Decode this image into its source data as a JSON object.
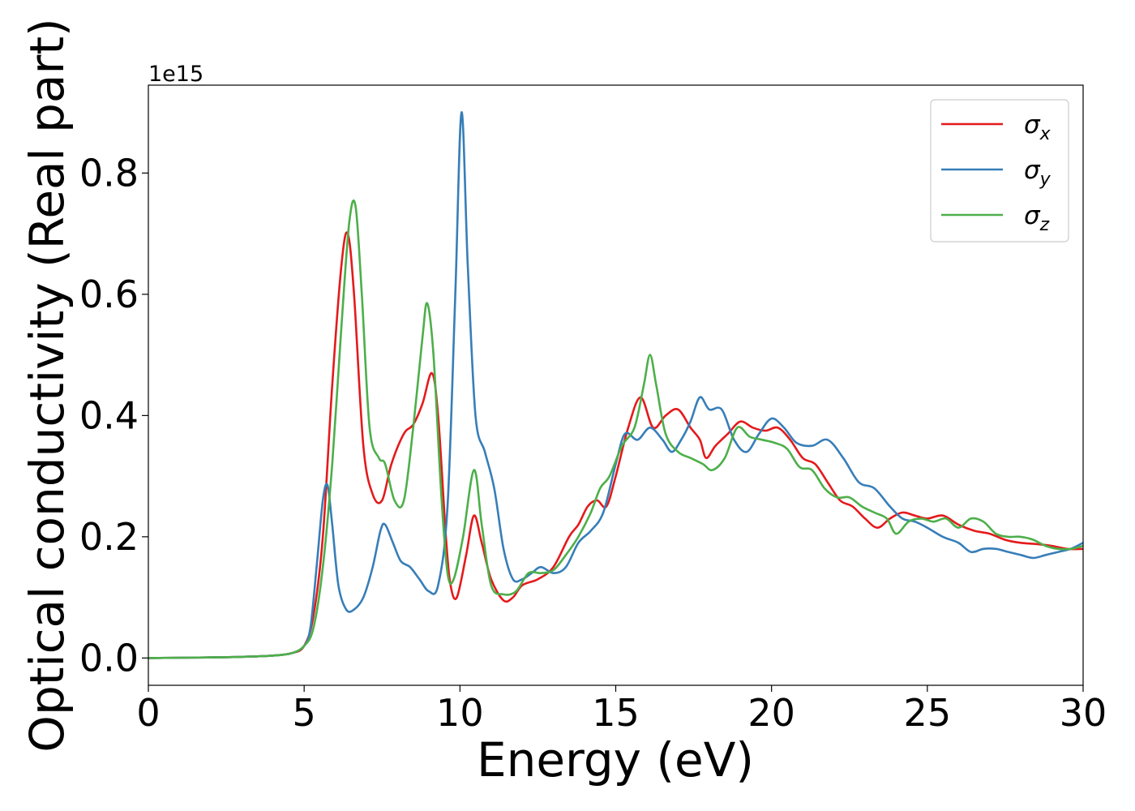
{
  "chart_data": {
    "type": "line",
    "title": "",
    "xlabel": "Energy (eV)",
    "ylabel": "Optical conductivity (Real part)",
    "y_offset_label": "1e15",
    "xlim": [
      0,
      30
    ],
    "ylim": [
      -0.045,
      0.945
    ],
    "x_ticks": [
      {
        "value": 0,
        "label": "0"
      },
      {
        "value": 5,
        "label": "5"
      },
      {
        "value": 10,
        "label": "10"
      },
      {
        "value": 15,
        "label": "15"
      },
      {
        "value": 20,
        "label": "20"
      },
      {
        "value": 25,
        "label": "25"
      },
      {
        "value": 30,
        "label": "30"
      }
    ],
    "y_ticks": [
      {
        "value": 0.0,
        "label": "0.0"
      },
      {
        "value": 0.2,
        "label": "0.2"
      },
      {
        "value": 0.4,
        "label": "0.4"
      },
      {
        "value": 0.6,
        "label": "0.6"
      },
      {
        "value": 0.8,
        "label": "0.8"
      }
    ],
    "grid": false,
    "legend_position": "top-right",
    "series": [
      {
        "name": "σ",
        "subscript": "x",
        "color": "#e41a1c",
        "points": [
          [
            0,
            0
          ],
          [
            2,
            0.001
          ],
          [
            3,
            0.002
          ],
          [
            4,
            0.004
          ],
          [
            4.6,
            0.008
          ],
          [
            5.0,
            0.02
          ],
          [
            5.3,
            0.07
          ],
          [
            5.6,
            0.2
          ],
          [
            5.9,
            0.45
          ],
          [
            6.2,
            0.65
          ],
          [
            6.4,
            0.7
          ],
          [
            6.6,
            0.6
          ],
          [
            6.9,
            0.35
          ],
          [
            7.2,
            0.27
          ],
          [
            7.5,
            0.26
          ],
          [
            7.8,
            0.32
          ],
          [
            8.2,
            0.37
          ],
          [
            8.5,
            0.385
          ],
          [
            8.8,
            0.42
          ],
          [
            9.1,
            0.47
          ],
          [
            9.3,
            0.4
          ],
          [
            9.55,
            0.2
          ],
          [
            9.7,
            0.12
          ],
          [
            9.9,
            0.1
          ],
          [
            10.2,
            0.17
          ],
          [
            10.45,
            0.235
          ],
          [
            10.7,
            0.19
          ],
          [
            11.0,
            0.13
          ],
          [
            11.4,
            0.095
          ],
          [
            11.7,
            0.1
          ],
          [
            12.0,
            0.12
          ],
          [
            12.5,
            0.13
          ],
          [
            13.0,
            0.15
          ],
          [
            13.5,
            0.2
          ],
          [
            13.8,
            0.22
          ],
          [
            14.1,
            0.25
          ],
          [
            14.4,
            0.26
          ],
          [
            14.7,
            0.25
          ],
          [
            15.0,
            0.3
          ],
          [
            15.4,
            0.38
          ],
          [
            15.8,
            0.43
          ],
          [
            16.2,
            0.38
          ],
          [
            16.6,
            0.4
          ],
          [
            17.0,
            0.41
          ],
          [
            17.4,
            0.38
          ],
          [
            17.7,
            0.36
          ],
          [
            17.9,
            0.33
          ],
          [
            18.2,
            0.35
          ],
          [
            18.6,
            0.37
          ],
          [
            19.0,
            0.39
          ],
          [
            19.4,
            0.38
          ],
          [
            19.8,
            0.375
          ],
          [
            20.2,
            0.38
          ],
          [
            20.6,
            0.36
          ],
          [
            21.0,
            0.33
          ],
          [
            21.4,
            0.32
          ],
          [
            21.8,
            0.29
          ],
          [
            22.2,
            0.26
          ],
          [
            22.6,
            0.25
          ],
          [
            23.0,
            0.23
          ],
          [
            23.4,
            0.215
          ],
          [
            23.8,
            0.23
          ],
          [
            24.2,
            0.24
          ],
          [
            24.6,
            0.235
          ],
          [
            25.0,
            0.23
          ],
          [
            25.5,
            0.235
          ],
          [
            26.0,
            0.22
          ],
          [
            26.5,
            0.21
          ],
          [
            27.0,
            0.205
          ],
          [
            27.5,
            0.195
          ],
          [
            28.0,
            0.19
          ],
          [
            28.5,
            0.188
          ],
          [
            29.0,
            0.185
          ],
          [
            29.5,
            0.18
          ],
          [
            30,
            0.18
          ]
        ]
      },
      {
        "name": "σ",
        "subscript": "y",
        "color": "#377eb8",
        "points": [
          [
            0,
            0
          ],
          [
            2,
            0.001
          ],
          [
            3,
            0.002
          ],
          [
            4,
            0.004
          ],
          [
            4.6,
            0.008
          ],
          [
            5.0,
            0.02
          ],
          [
            5.2,
            0.05
          ],
          [
            5.4,
            0.15
          ],
          [
            5.6,
            0.26
          ],
          [
            5.75,
            0.285
          ],
          [
            5.9,
            0.22
          ],
          [
            6.1,
            0.12
          ],
          [
            6.35,
            0.08
          ],
          [
            6.6,
            0.08
          ],
          [
            6.9,
            0.1
          ],
          [
            7.2,
            0.15
          ],
          [
            7.45,
            0.21
          ],
          [
            7.6,
            0.22
          ],
          [
            7.85,
            0.19
          ],
          [
            8.1,
            0.16
          ],
          [
            8.4,
            0.15
          ],
          [
            8.7,
            0.13
          ],
          [
            9.0,
            0.11
          ],
          [
            9.3,
            0.12
          ],
          [
            9.6,
            0.25
          ],
          [
            9.85,
            0.6
          ],
          [
            10.05,
            0.9
          ],
          [
            10.25,
            0.65
          ],
          [
            10.5,
            0.4
          ],
          [
            10.8,
            0.34
          ],
          [
            11.1,
            0.28
          ],
          [
            11.4,
            0.18
          ],
          [
            11.7,
            0.13
          ],
          [
            12.0,
            0.13
          ],
          [
            12.3,
            0.14
          ],
          [
            12.6,
            0.15
          ],
          [
            13.0,
            0.14
          ],
          [
            13.4,
            0.15
          ],
          [
            13.8,
            0.19
          ],
          [
            14.2,
            0.21
          ],
          [
            14.6,
            0.24
          ],
          [
            15.0,
            0.32
          ],
          [
            15.3,
            0.37
          ],
          [
            15.7,
            0.36
          ],
          [
            16.1,
            0.38
          ],
          [
            16.5,
            0.36
          ],
          [
            16.8,
            0.34
          ],
          [
            17.1,
            0.36
          ],
          [
            17.4,
            0.39
          ],
          [
            17.7,
            0.43
          ],
          [
            18.0,
            0.41
          ],
          [
            18.4,
            0.41
          ],
          [
            18.8,
            0.36
          ],
          [
            19.2,
            0.34
          ],
          [
            19.6,
            0.37
          ],
          [
            20.0,
            0.395
          ],
          [
            20.4,
            0.38
          ],
          [
            20.8,
            0.355
          ],
          [
            21.3,
            0.35
          ],
          [
            21.8,
            0.36
          ],
          [
            22.3,
            0.33
          ],
          [
            22.8,
            0.29
          ],
          [
            23.3,
            0.28
          ],
          [
            23.8,
            0.25
          ],
          [
            24.2,
            0.23
          ],
          [
            24.6,
            0.225
          ],
          [
            25.0,
            0.215
          ],
          [
            25.5,
            0.2
          ],
          [
            26.0,
            0.19
          ],
          [
            26.4,
            0.175
          ],
          [
            26.8,
            0.18
          ],
          [
            27.2,
            0.18
          ],
          [
            27.6,
            0.175
          ],
          [
            28.0,
            0.17
          ],
          [
            28.4,
            0.165
          ],
          [
            28.8,
            0.17
          ],
          [
            29.2,
            0.175
          ],
          [
            29.6,
            0.18
          ],
          [
            30,
            0.19
          ]
        ]
      },
      {
        "name": "σ",
        "subscript": "z",
        "color": "#4daf4a",
        "points": [
          [
            0,
            0
          ],
          [
            2,
            0.001
          ],
          [
            3,
            0.002
          ],
          [
            4,
            0.004
          ],
          [
            4.6,
            0.008
          ],
          [
            5.0,
            0.02
          ],
          [
            5.3,
            0.05
          ],
          [
            5.6,
            0.15
          ],
          [
            5.9,
            0.32
          ],
          [
            6.2,
            0.55
          ],
          [
            6.45,
            0.72
          ],
          [
            6.65,
            0.745
          ],
          [
            6.85,
            0.6
          ],
          [
            7.1,
            0.38
          ],
          [
            7.4,
            0.33
          ],
          [
            7.6,
            0.32
          ],
          [
            7.9,
            0.26
          ],
          [
            8.2,
            0.26
          ],
          [
            8.5,
            0.38
          ],
          [
            8.8,
            0.53
          ],
          [
            8.95,
            0.585
          ],
          [
            9.15,
            0.5
          ],
          [
            9.4,
            0.27
          ],
          [
            9.6,
            0.14
          ],
          [
            9.8,
            0.13
          ],
          [
            10.1,
            0.2
          ],
          [
            10.45,
            0.31
          ],
          [
            10.7,
            0.22
          ],
          [
            11.0,
            0.12
          ],
          [
            11.4,
            0.105
          ],
          [
            11.8,
            0.11
          ],
          [
            12.2,
            0.14
          ],
          [
            12.6,
            0.14
          ],
          [
            13.0,
            0.145
          ],
          [
            13.4,
            0.17
          ],
          [
            13.8,
            0.2
          ],
          [
            14.2,
            0.24
          ],
          [
            14.5,
            0.28
          ],
          [
            14.8,
            0.3
          ],
          [
            15.2,
            0.35
          ],
          [
            15.6,
            0.38
          ],
          [
            15.9,
            0.45
          ],
          [
            16.1,
            0.5
          ],
          [
            16.3,
            0.45
          ],
          [
            16.6,
            0.37
          ],
          [
            17.0,
            0.34
          ],
          [
            17.4,
            0.33
          ],
          [
            17.8,
            0.32
          ],
          [
            18.1,
            0.31
          ],
          [
            18.5,
            0.33
          ],
          [
            18.9,
            0.38
          ],
          [
            19.3,
            0.365
          ],
          [
            19.7,
            0.36
          ],
          [
            20.1,
            0.355
          ],
          [
            20.5,
            0.345
          ],
          [
            20.9,
            0.315
          ],
          [
            21.3,
            0.31
          ],
          [
            21.7,
            0.28
          ],
          [
            22.1,
            0.265
          ],
          [
            22.5,
            0.265
          ],
          [
            22.9,
            0.25
          ],
          [
            23.3,
            0.24
          ],
          [
            23.7,
            0.23
          ],
          [
            24.0,
            0.205
          ],
          [
            24.4,
            0.225
          ],
          [
            24.8,
            0.23
          ],
          [
            25.2,
            0.225
          ],
          [
            25.6,
            0.23
          ],
          [
            26.0,
            0.215
          ],
          [
            26.4,
            0.23
          ],
          [
            26.8,
            0.225
          ],
          [
            27.2,
            0.205
          ],
          [
            27.6,
            0.2
          ],
          [
            28.0,
            0.2
          ],
          [
            28.4,
            0.195
          ],
          [
            28.8,
            0.185
          ],
          [
            29.2,
            0.18
          ],
          [
            29.6,
            0.18
          ],
          [
            30,
            0.185
          ]
        ]
      }
    ]
  }
}
